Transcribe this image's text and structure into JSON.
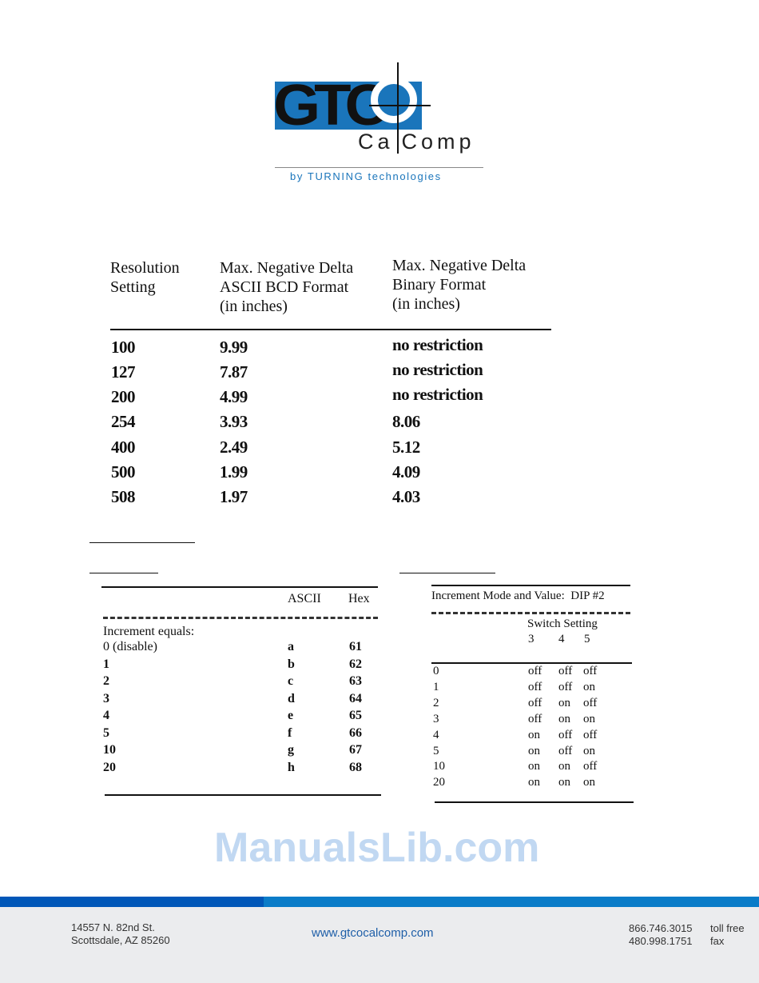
{
  "logo": {
    "mark": "GTCO",
    "sub": "CalComp",
    "tagline": "by TURNING technologies",
    "colors": {
      "blue": "#1a75bb",
      "black": "#111111"
    }
  },
  "main_table": {
    "headers": [
      "Resolution\nSetting",
      "Max. Negative Delta\nASCII BCD Format\n(in inches)",
      "Max. Negative Delta\nBinary Format\n(in inches)"
    ],
    "rows": [
      [
        "100",
        "9.99",
        "no restriction"
      ],
      [
        "127",
        "7.87",
        "no restriction"
      ],
      [
        "200",
        "4.99",
        "no restriction"
      ],
      [
        "254",
        "3.93",
        "8.06"
      ],
      [
        "400",
        "2.49",
        "5.12"
      ],
      [
        "500",
        "1.99",
        "4.09"
      ],
      [
        "508",
        "1.97",
        "4.03"
      ]
    ]
  },
  "watermark": "ManualsLib.com",
  "ascii_table": {
    "headers": [
      "",
      "ASCII",
      "Hex"
    ],
    "label": "Increment equals:",
    "rows": [
      [
        "0 (disable)",
        "a",
        "61"
      ],
      [
        "1",
        "b",
        "62"
      ],
      [
        "2",
        "c",
        "63"
      ],
      [
        "3",
        "d",
        "64"
      ],
      [
        "4",
        "e",
        "65"
      ],
      [
        "5",
        "f",
        "66"
      ],
      [
        "10",
        "g",
        "67"
      ],
      [
        "20",
        "h",
        "68"
      ]
    ]
  },
  "dip_table": {
    "title": "Increment Mode and Value:  DIP #2",
    "group_header": "Switch Setting",
    "switches": [
      "3",
      "4",
      "5"
    ],
    "rows": [
      [
        "0",
        "off",
        "off",
        "off"
      ],
      [
        "1",
        "off",
        "off",
        "on"
      ],
      [
        "2",
        "off",
        "on",
        "off"
      ],
      [
        "3",
        "off",
        "on",
        "on"
      ],
      [
        "4",
        "on",
        "off",
        "off"
      ],
      [
        "5",
        "on",
        "off",
        "on"
      ],
      [
        "10",
        "on",
        "on",
        "off"
      ],
      [
        "20",
        "on",
        "on",
        "on"
      ]
    ]
  },
  "footer": {
    "address_line1": "14557 N. 82nd St.",
    "address_line2": "Scottsdale, AZ 85260",
    "website": "www.gtcocalcomp.com",
    "phone": "866.746.3015",
    "phone_label": "toll free",
    "fax": "480.998.1751",
    "fax_label": "fax",
    "colors": {
      "bar_dark": "#0057b8",
      "bar_light": "#0a7cc8",
      "background": "#ebecee",
      "link": "#1f5fa8"
    }
  }
}
